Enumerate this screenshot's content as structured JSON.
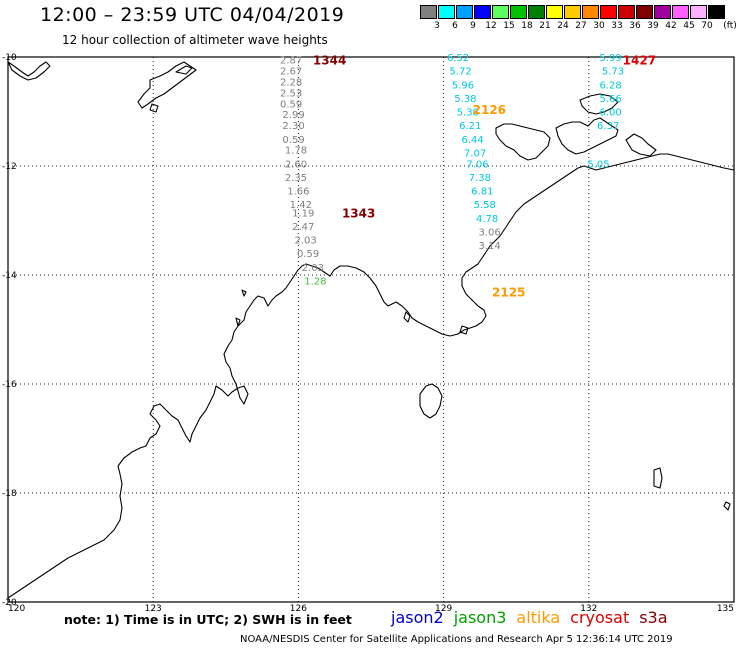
{
  "header": {
    "title": "12:00 – 23:59 UTC 04/04/2019",
    "subtitle": "12 hour collection of altimeter wave heights"
  },
  "legend": {
    "unit": "(ft)",
    "items": [
      {
        "label": "3",
        "color": "#808080"
      },
      {
        "label": "6",
        "color": "#00ffff"
      },
      {
        "label": "9",
        "color": "#00a0ff"
      },
      {
        "label": "12",
        "color": "#0000ff"
      },
      {
        "label": "15",
        "color": "#60ff60"
      },
      {
        "label": "18",
        "color": "#00c000"
      },
      {
        "label": "21",
        "color": "#008000"
      },
      {
        "label": "24",
        "color": "#ffff00"
      },
      {
        "label": "27",
        "color": "#ffcc00"
      },
      {
        "label": "30",
        "color": "#ff8800"
      },
      {
        "label": "33",
        "color": "#ff0000"
      },
      {
        "label": "36",
        "color": "#cc0000"
      },
      {
        "label": "39",
        "color": "#800000"
      },
      {
        "label": "42",
        "color": "#a000a0"
      },
      {
        "label": "45",
        "color": "#ff60ff"
      },
      {
        "label": "70",
        "color": "#ffb0ff"
      },
      {
        "label": "",
        "color": "#000000"
      }
    ]
  },
  "axes": {
    "lon_ticks": [
      "120",
      "123",
      "126",
      "129",
      "132",
      "135"
    ],
    "lat_ticks": [
      "-10",
      "-12",
      "-14",
      "-16",
      "-18",
      "-20"
    ]
  },
  "passes": [
    {
      "id": "1344",
      "color": "#800000",
      "lon": 126.3,
      "lat": -10.05
    },
    {
      "id": "1343",
      "color": "#800000",
      "lon": 126.9,
      "lat": -12.85
    },
    {
      "id": "2126",
      "color": "#ff9900",
      "lon": 129.6,
      "lat": -10.95
    },
    {
      "id": "2125",
      "color": "#ff9900",
      "lon": 130.0,
      "lat": -14.3
    },
    {
      "id": "1427",
      "color": "#e00000",
      "lon": 132.7,
      "lat": -10.05
    }
  ],
  "tracks": [
    {
      "satellite": "cryosat",
      "color": "#808080",
      "points": [
        {
          "lon": 125.85,
          "lat": -10.05,
          "swh": "2.87"
        },
        {
          "lon": 125.85,
          "lat": -10.25,
          "swh": "2.67"
        },
        {
          "lon": 125.85,
          "lat": -10.45,
          "swh": "2.28"
        },
        {
          "lon": 125.85,
          "lat": -10.65,
          "swh": "2.53"
        },
        {
          "lon": 125.85,
          "lat": -10.85,
          "swh": "0.59"
        },
        {
          "lon": 125.9,
          "lat": -11.05,
          "swh": "2.99"
        },
        {
          "lon": 125.9,
          "lat": -11.25,
          "swh": "2.30"
        },
        {
          "lon": 125.9,
          "lat": -11.5,
          "swh": "0.59"
        },
        {
          "lon": 125.95,
          "lat": -11.7,
          "swh": "1.78"
        },
        {
          "lon": 125.95,
          "lat": -11.95,
          "swh": "2.60"
        },
        {
          "lon": 125.95,
          "lat": -12.2,
          "swh": "2.35"
        },
        {
          "lon": 126.0,
          "lat": -12.45,
          "swh": "1.66"
        },
        {
          "lon": 126.05,
          "lat": -12.7,
          "swh": "1.42"
        },
        {
          "lon": 126.1,
          "lat": -12.85,
          "swh": "1.19"
        },
        {
          "lon": 126.1,
          "lat": -13.1,
          "swh": "2.47"
        },
        {
          "lon": 126.15,
          "lat": -13.35,
          "swh": "2.03"
        },
        {
          "lon": 126.2,
          "lat": -13.6,
          "swh": "0.59"
        },
        {
          "lon": 126.3,
          "lat": -13.85,
          "swh": "2.03"
        }
      ]
    },
    {
      "satellite": "jason3",
      "color": "#40c040",
      "points": [
        {
          "lon": 126.35,
          "lat": -14.1,
          "swh": "1.28"
        }
      ]
    },
    {
      "satellite": "altika",
      "color": "#00c8e0",
      "points": [
        {
          "lon": 129.3,
          "lat": -10.0,
          "swh": "6.52"
        },
        {
          "lon": 129.35,
          "lat": -10.25,
          "swh": "5.72"
        },
        {
          "lon": 129.4,
          "lat": -10.5,
          "swh": "5.96"
        },
        {
          "lon": 129.45,
          "lat": -10.75,
          "swh": "5.38"
        },
        {
          "lon": 129.5,
          "lat": -11.0,
          "swh": "5.38"
        },
        {
          "lon": 129.55,
          "lat": -11.25,
          "swh": "6.21"
        },
        {
          "lon": 129.6,
          "lat": -11.5,
          "swh": "6.44"
        },
        {
          "lon": 129.65,
          "lat": -11.75,
          "swh": "7.07"
        },
        {
          "lon": 129.7,
          "lat": -11.95,
          "swh": "7.06"
        },
        {
          "lon": 129.75,
          "lat": -12.2,
          "swh": "7.38"
        },
        {
          "lon": 129.8,
          "lat": -12.45,
          "swh": "6.81"
        },
        {
          "lon": 129.85,
          "lat": -12.7,
          "swh": "5.58"
        },
        {
          "lon": 129.9,
          "lat": -12.95,
          "swh": "4.78"
        }
      ]
    },
    {
      "satellite": "altika",
      "color": "#808080",
      "points": [
        {
          "lon": 129.95,
          "lat": -13.2,
          "swh": "3.06"
        },
        {
          "lon": 129.95,
          "lat": -13.45,
          "swh": "3.14"
        }
      ]
    },
    {
      "satellite": "s3a",
      "color": "#00c8e0",
      "points": [
        {
          "lon": 132.45,
          "lat": -10.0,
          "swh": "5.99"
        },
        {
          "lon": 132.5,
          "lat": -10.25,
          "swh": "5.73"
        },
        {
          "lon": 132.45,
          "lat": -10.5,
          "swh": "6.28"
        },
        {
          "lon": 132.45,
          "lat": -10.75,
          "swh": "5.66"
        },
        {
          "lon": 132.45,
          "lat": -11.0,
          "swh": "6.00"
        },
        {
          "lon": 132.4,
          "lat": -11.25,
          "swh": "6.37"
        },
        {
          "lon": 132.2,
          "lat": -11.95,
          "swh": "5.05"
        }
      ]
    }
  ],
  "footer": {
    "note": "note:  1) Time is in UTC;  2) SWH is in feet",
    "satellites": [
      {
        "name": "jason2",
        "color": "#0000cc"
      },
      {
        "name": "jason3",
        "color": "#00a000"
      },
      {
        "name": "altika",
        "color": "#ff9900"
      },
      {
        "name": "cryosat",
        "color": "#dd0000"
      },
      {
        "name": "s3a",
        "color": "#800000"
      }
    ],
    "credit": "NOAA/NESDIS Center for Satellite Applications and Research     Apr  5 12:36:14 UTC 2019"
  }
}
